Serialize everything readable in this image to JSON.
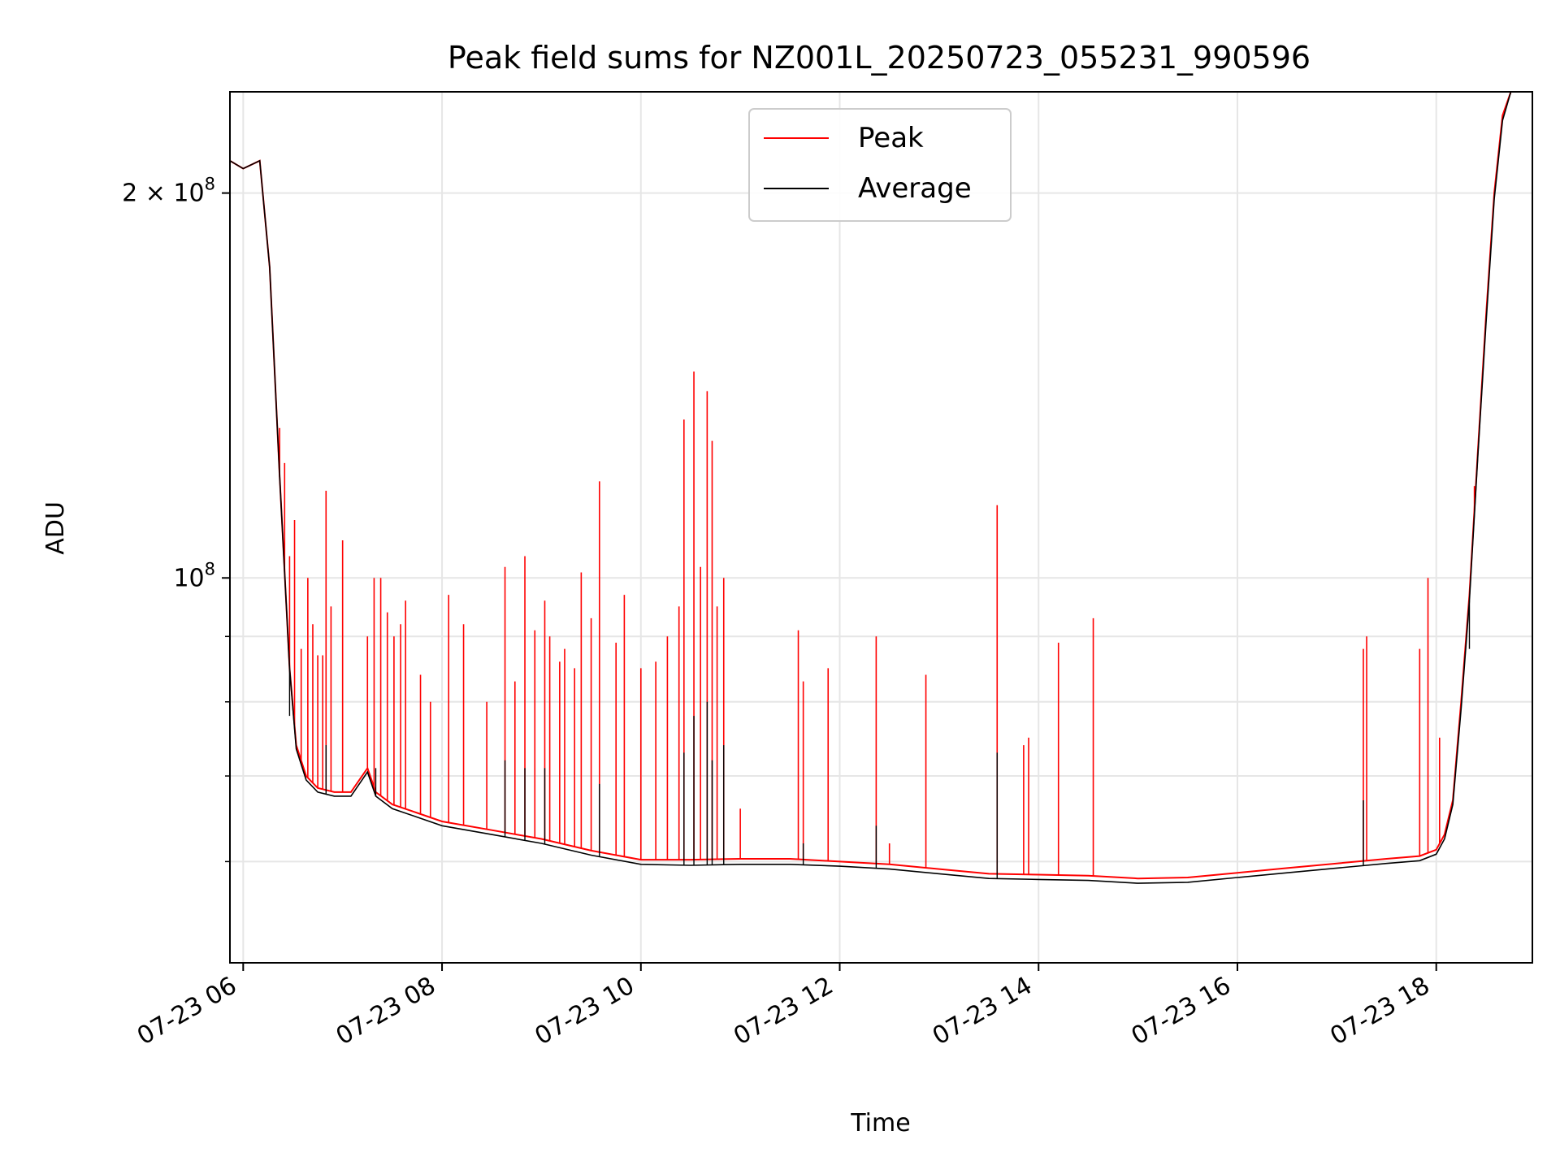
{
  "chart_data": {
    "type": "line",
    "title": "Peak field sums for NZ001L_20250723_055231_990596",
    "xlabel": "Time",
    "ylabel": "ADU",
    "yscale": "log",
    "xlim": [
      "2025-07-23T05:52",
      "2025-07-23T18:58"
    ],
    "ylim": [
      50000000,
      240000000
    ],
    "grid": true,
    "legend_position": "upper-center",
    "x_ticks": [
      "07-23 06",
      "07-23 08",
      "07-23 10",
      "07-23 12",
      "07-23 14",
      "07-23 16",
      "07-23 18"
    ],
    "x_tick_times": [
      "2025-07-23T06:00",
      "2025-07-23T08:00",
      "2025-07-23T10:00",
      "2025-07-23T12:00",
      "2025-07-23T14:00",
      "2025-07-23T16:00",
      "2025-07-23T18:00"
    ],
    "y_major_ticks": [
      {
        "value": 100000000,
        "base": "10",
        "exp": "8",
        "label_mantissa": ""
      },
      {
        "value": 200000000,
        "base": "10",
        "exp": "8",
        "label_mantissa": "2 × "
      }
    ],
    "y_minor_ticks": [
      60000000,
      70000000,
      80000000,
      90000000
    ],
    "series": [
      {
        "name": "Peak",
        "color": "#ff0000",
        "x": [
          "2025-07-23T05:52",
          "2025-07-23T06:00",
          "2025-07-23T06:10",
          "2025-07-23T06:16",
          "2025-07-23T06:22",
          "2025-07-23T06:28",
          "2025-07-23T06:32",
          "2025-07-23T06:38",
          "2025-07-23T06:45",
          "2025-07-23T06:55",
          "2025-07-23T07:05",
          "2025-07-23T07:15",
          "2025-07-23T07:20",
          "2025-07-23T07:30",
          "2025-07-23T07:45",
          "2025-07-23T08:00",
          "2025-07-23T08:30",
          "2025-07-23T09:00",
          "2025-07-23T09:30",
          "2025-07-23T10:00",
          "2025-07-23T10:30",
          "2025-07-23T11:00",
          "2025-07-23T11:30",
          "2025-07-23T12:00",
          "2025-07-23T12:30",
          "2025-07-23T13:00",
          "2025-07-23T13:30",
          "2025-07-23T14:00",
          "2025-07-23T14:30",
          "2025-07-23T15:00",
          "2025-07-23T15:30",
          "2025-07-23T16:00",
          "2025-07-23T16:30",
          "2025-07-23T17:00",
          "2025-07-23T17:30",
          "2025-07-23T17:50",
          "2025-07-23T18:00",
          "2025-07-23T18:05",
          "2025-07-23T18:10",
          "2025-07-23T18:15",
          "2025-07-23T18:20",
          "2025-07-23T18:25",
          "2025-07-23T18:30",
          "2025-07-23T18:35",
          "2025-07-23T18:40",
          "2025-07-23T18:45",
          "2025-07-23T18:50",
          "2025-07-23T18:58"
        ],
        "values": [
          212000000,
          209000000,
          212000000,
          175000000,
          120000000,
          85000000,
          74000000,
          70000000,
          68500000,
          68000000,
          68000000,
          71000000,
          68000000,
          66500000,
          65500000,
          64500000,
          63500000,
          62500000,
          61200000,
          60200000,
          60200000,
          60300000,
          60300000,
          60000000,
          59700000,
          59200000,
          58700000,
          58600000,
          58500000,
          58200000,
          58300000,
          58800000,
          59300000,
          59800000,
          60300000,
          60600000,
          61300000,
          63000000,
          67000000,
          80000000,
          97000000,
          125000000,
          160000000,
          200000000,
          230000000,
          240000000,
          240000000,
          240000000
        ]
      },
      {
        "name": "Average",
        "color": "#000000",
        "x": [
          "2025-07-23T05:52",
          "2025-07-23T06:00",
          "2025-07-23T06:10",
          "2025-07-23T06:16",
          "2025-07-23T06:22",
          "2025-07-23T06:28",
          "2025-07-23T06:32",
          "2025-07-23T06:38",
          "2025-07-23T06:45",
          "2025-07-23T06:55",
          "2025-07-23T07:05",
          "2025-07-23T07:15",
          "2025-07-23T07:20",
          "2025-07-23T07:30",
          "2025-07-23T07:45",
          "2025-07-23T08:00",
          "2025-07-23T08:30",
          "2025-07-23T09:00",
          "2025-07-23T09:30",
          "2025-07-23T10:00",
          "2025-07-23T10:30",
          "2025-07-23T11:00",
          "2025-07-23T11:30",
          "2025-07-23T12:00",
          "2025-07-23T12:30",
          "2025-07-23T13:00",
          "2025-07-23T13:30",
          "2025-07-23T14:00",
          "2025-07-23T14:30",
          "2025-07-23T15:00",
          "2025-07-23T15:30",
          "2025-07-23T16:00",
          "2025-07-23T16:30",
          "2025-07-23T17:00",
          "2025-07-23T17:30",
          "2025-07-23T17:50",
          "2025-07-23T18:00",
          "2025-07-23T18:05",
          "2025-07-23T18:10",
          "2025-07-23T18:15",
          "2025-07-23T18:20",
          "2025-07-23T18:25",
          "2025-07-23T18:30",
          "2025-07-23T18:35",
          "2025-07-23T18:40",
          "2025-07-23T18:45",
          "2025-07-23T18:50",
          "2025-07-23T18:58"
        ],
        "values": [
          212000000,
          209000000,
          212000000,
          175000000,
          120000000,
          85000000,
          73500000,
          69500000,
          68000000,
          67500000,
          67500000,
          70500000,
          67500000,
          66000000,
          65000000,
          64000000,
          63000000,
          62000000,
          60700000,
          59700000,
          59600000,
          59700000,
          59700000,
          59500000,
          59200000,
          58700000,
          58200000,
          58100000,
          58000000,
          57700000,
          57800000,
          58300000,
          58800000,
          59300000,
          59800000,
          60100000,
          60800000,
          62500000,
          66500000,
          79000000,
          96000000,
          124000000,
          158000000,
          198000000,
          228000000,
          240000000,
          240000000,
          240000000
        ]
      }
    ],
    "peak_spikes": [
      {
        "x": "2025-07-23T06:22",
        "y": 131000000
      },
      {
        "x": "2025-07-23T06:25",
        "y": 123000000
      },
      {
        "x": "2025-07-23T06:28",
        "y": 104000000
      },
      {
        "x": "2025-07-23T06:31",
        "y": 111000000
      },
      {
        "x": "2025-07-23T06:35",
        "y": 88000000
      },
      {
        "x": "2025-07-23T06:39",
        "y": 100000000
      },
      {
        "x": "2025-07-23T06:42",
        "y": 92000000
      },
      {
        "x": "2025-07-23T06:45",
        "y": 87000000
      },
      {
        "x": "2025-07-23T06:48",
        "y": 87000000
      },
      {
        "x": "2025-07-23T06:50",
        "y": 117000000
      },
      {
        "x": "2025-07-23T06:53",
        "y": 95000000
      },
      {
        "x": "2025-07-23T07:00",
        "y": 107000000
      },
      {
        "x": "2025-07-23T07:15",
        "y": 90000000
      },
      {
        "x": "2025-07-23T07:19",
        "y": 100000000
      },
      {
        "x": "2025-07-23T07:23",
        "y": 100000000
      },
      {
        "x": "2025-07-23T07:27",
        "y": 94000000
      },
      {
        "x": "2025-07-23T07:31",
        "y": 90000000
      },
      {
        "x": "2025-07-23T07:35",
        "y": 92000000
      },
      {
        "x": "2025-07-23T07:38",
        "y": 96000000
      },
      {
        "x": "2025-07-23T07:47",
        "y": 84000000
      },
      {
        "x": "2025-07-23T07:53",
        "y": 80000000
      },
      {
        "x": "2025-07-23T08:04",
        "y": 97000000
      },
      {
        "x": "2025-07-23T08:13",
        "y": 92000000
      },
      {
        "x": "2025-07-23T08:27",
        "y": 80000000
      },
      {
        "x": "2025-07-23T08:38",
        "y": 102000000
      },
      {
        "x": "2025-07-23T08:44",
        "y": 83000000
      },
      {
        "x": "2025-07-23T08:50",
        "y": 104000000
      },
      {
        "x": "2025-07-23T08:56",
        "y": 91000000
      },
      {
        "x": "2025-07-23T09:02",
        "y": 96000000
      },
      {
        "x": "2025-07-23T09:05",
        "y": 90000000
      },
      {
        "x": "2025-07-23T09:11",
        "y": 86000000
      },
      {
        "x": "2025-07-23T09:14",
        "y": 88000000
      },
      {
        "x": "2025-07-23T09:20",
        "y": 85000000
      },
      {
        "x": "2025-07-23T09:24",
        "y": 101000000
      },
      {
        "x": "2025-07-23T09:30",
        "y": 93000000
      },
      {
        "x": "2025-07-23T09:35",
        "y": 119000000
      },
      {
        "x": "2025-07-23T09:45",
        "y": 89000000
      },
      {
        "x": "2025-07-23T09:50",
        "y": 97000000
      },
      {
        "x": "2025-07-23T10:00",
        "y": 85000000
      },
      {
        "x": "2025-07-23T10:09",
        "y": 86000000
      },
      {
        "x": "2025-07-23T10:16",
        "y": 90000000
      },
      {
        "x": "2025-07-23T10:23",
        "y": 95000000
      },
      {
        "x": "2025-07-23T10:26",
        "y": 133000000
      },
      {
        "x": "2025-07-23T10:32",
        "y": 145000000
      },
      {
        "x": "2025-07-23T10:36",
        "y": 102000000
      },
      {
        "x": "2025-07-23T10:40",
        "y": 140000000
      },
      {
        "x": "2025-07-23T10:43",
        "y": 128000000
      },
      {
        "x": "2025-07-23T10:46",
        "y": 95000000
      },
      {
        "x": "2025-07-23T10:50",
        "y": 100000000
      },
      {
        "x": "2025-07-23T11:00",
        "y": 66000000
      },
      {
        "x": "2025-07-23T11:35",
        "y": 91000000
      },
      {
        "x": "2025-07-23T11:38",
        "y": 83000000
      },
      {
        "x": "2025-07-23T11:53",
        "y": 85000000
      },
      {
        "x": "2025-07-23T12:22",
        "y": 90000000
      },
      {
        "x": "2025-07-23T12:30",
        "y": 62000000
      },
      {
        "x": "2025-07-23T12:52",
        "y": 84000000
      },
      {
        "x": "2025-07-23T13:35",
        "y": 114000000
      },
      {
        "x": "2025-07-23T13:51",
        "y": 74000000
      },
      {
        "x": "2025-07-23T13:54",
        "y": 75000000
      },
      {
        "x": "2025-07-23T14:12",
        "y": 89000000
      },
      {
        "x": "2025-07-23T14:33",
        "y": 93000000
      },
      {
        "x": "2025-07-23T17:16",
        "y": 88000000
      },
      {
        "x": "2025-07-23T17:18",
        "y": 90000000
      },
      {
        "x": "2025-07-23T17:50",
        "y": 88000000
      },
      {
        "x": "2025-07-23T17:55",
        "y": 100000000
      },
      {
        "x": "2025-07-23T18:02",
        "y": 75000000
      },
      {
        "x": "2025-07-23T18:20",
        "y": 97000000
      },
      {
        "x": "2025-07-23T18:23",
        "y": 118000000
      }
    ],
    "average_spikes": [
      {
        "x": "2025-07-23T06:28",
        "y": 78000000
      },
      {
        "x": "2025-07-23T06:50",
        "y": 74000000
      },
      {
        "x": "2025-07-23T07:20",
        "y": 71000000
      },
      {
        "x": "2025-07-23T08:38",
        "y": 72000000
      },
      {
        "x": "2025-07-23T08:50",
        "y": 71000000
      },
      {
        "x": "2025-07-23T09:02",
        "y": 71000000
      },
      {
        "x": "2025-07-23T09:35",
        "y": 69000000
      },
      {
        "x": "2025-07-23T10:26",
        "y": 73000000
      },
      {
        "x": "2025-07-23T10:32",
        "y": 78000000
      },
      {
        "x": "2025-07-23T10:40",
        "y": 80000000
      },
      {
        "x": "2025-07-23T10:43",
        "y": 72000000
      },
      {
        "x": "2025-07-23T10:50",
        "y": 74000000
      },
      {
        "x": "2025-07-23T11:38",
        "y": 62000000
      },
      {
        "x": "2025-07-23T12:22",
        "y": 64000000
      },
      {
        "x": "2025-07-23T13:35",
        "y": 73000000
      },
      {
        "x": "2025-07-23T17:16",
        "y": 67000000
      },
      {
        "x": "2025-07-23T18:20",
        "y": 88000000
      }
    ]
  }
}
